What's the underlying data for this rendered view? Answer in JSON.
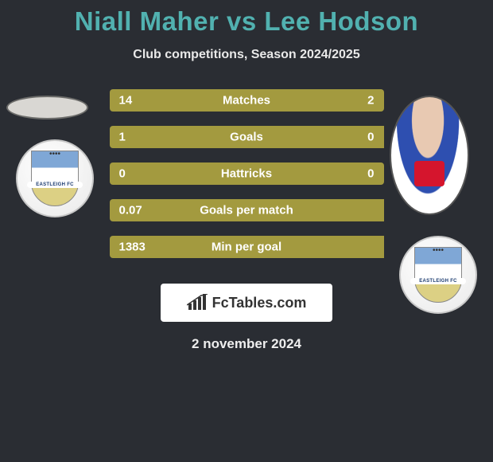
{
  "title": "Niall Maher vs Lee Hodson",
  "subtitle": "Club competitions, Season 2024/2025",
  "date_text": "2 november 2024",
  "brand": {
    "text": "FcTables.com"
  },
  "colors": {
    "background": "#2a2d33",
    "title": "#51b1b0",
    "bar_fill": "#a39a3f",
    "text": "#ffffff"
  },
  "stats": [
    {
      "label": "Matches",
      "left_val": "14",
      "right_val": "2",
      "left_pct": 87.5,
      "right_pct": 12.5
    },
    {
      "label": "Goals",
      "left_val": "1",
      "right_val": "0",
      "left_pct": 100,
      "right_pct": 0
    },
    {
      "label": "Hattricks",
      "left_val": "0",
      "right_val": "0",
      "left_pct": 50,
      "right_pct": 50
    },
    {
      "label": "Goals per match",
      "left_val": "0.07",
      "right_val": "",
      "left_pct": 100,
      "right_pct": 0
    },
    {
      "label": "Min per goal",
      "left_val": "1383",
      "right_val": "",
      "left_pct": 100,
      "right_pct": 0
    }
  ],
  "badge_label": "EASTLEIGH FC"
}
